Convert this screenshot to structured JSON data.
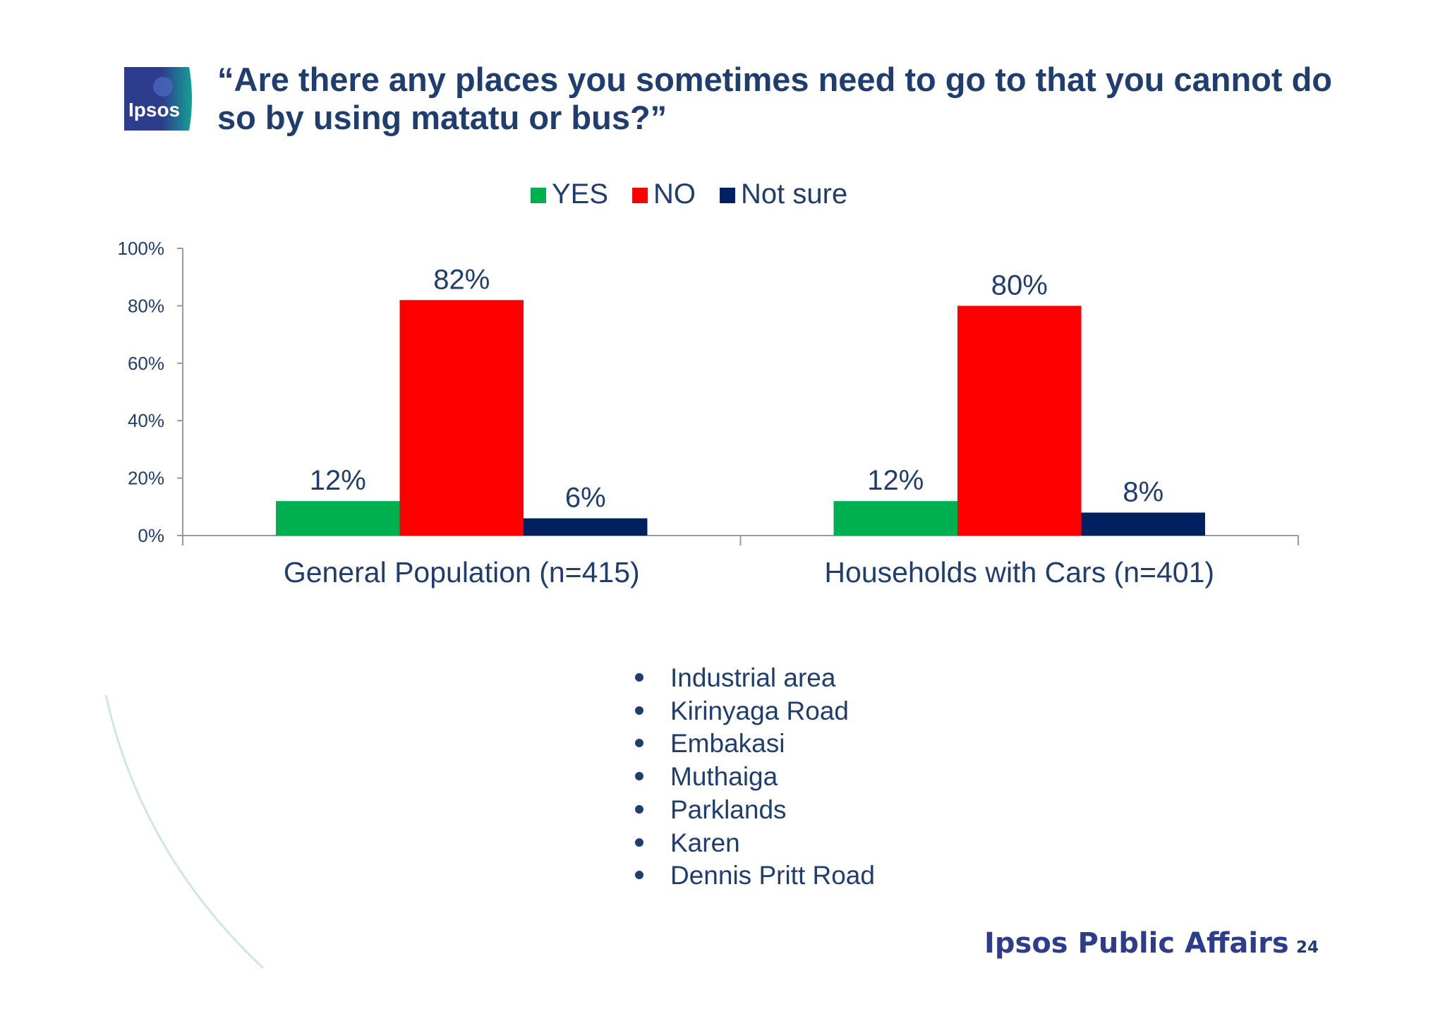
{
  "slide": {
    "title": "“Are there any places you sometimes need to go to that you cannot do so by using matatu or bus?”",
    "logo_text": "Ipsos",
    "footer_brand": "Ipsos Public Affairs",
    "page_number": "24"
  },
  "colors": {
    "title": "#1f3d6e",
    "yes": "#00b050",
    "no": "#ff0000",
    "not_sure": "#002060",
    "logo_blue": "#2d3c8c",
    "logo_teal": "#14a096"
  },
  "chart_data": {
    "type": "bar",
    "categories": [
      "General Population (n=415)",
      "Households with Cars (n=401)"
    ],
    "series": [
      {
        "name": "YES",
        "values": [
          12,
          12
        ],
        "labels": [
          "12%",
          "12%"
        ],
        "color": "#00b050"
      },
      {
        "name": "NO",
        "values": [
          82,
          80
        ],
        "labels": [
          "82%",
          "80%"
        ],
        "color": "#ff0000"
      },
      {
        "name": "Not sure",
        "values": [
          6,
          8
        ],
        "labels": [
          "6%",
          "8%"
        ],
        "color": "#002060"
      }
    ],
    "ylim": [
      0,
      100
    ],
    "yticks": [
      0,
      20,
      40,
      60,
      80,
      100
    ],
    "ytick_labels": [
      "0%",
      "20%",
      "40%",
      "60%",
      "80%",
      "100%"
    ],
    "grid": false,
    "legend": "top-center"
  },
  "places": [
    "Industrial area",
    "Kirinyaga Road",
    "Embakasi",
    "Muthaiga",
    "Parklands",
    "Karen",
    "Dennis Pritt Road"
  ]
}
